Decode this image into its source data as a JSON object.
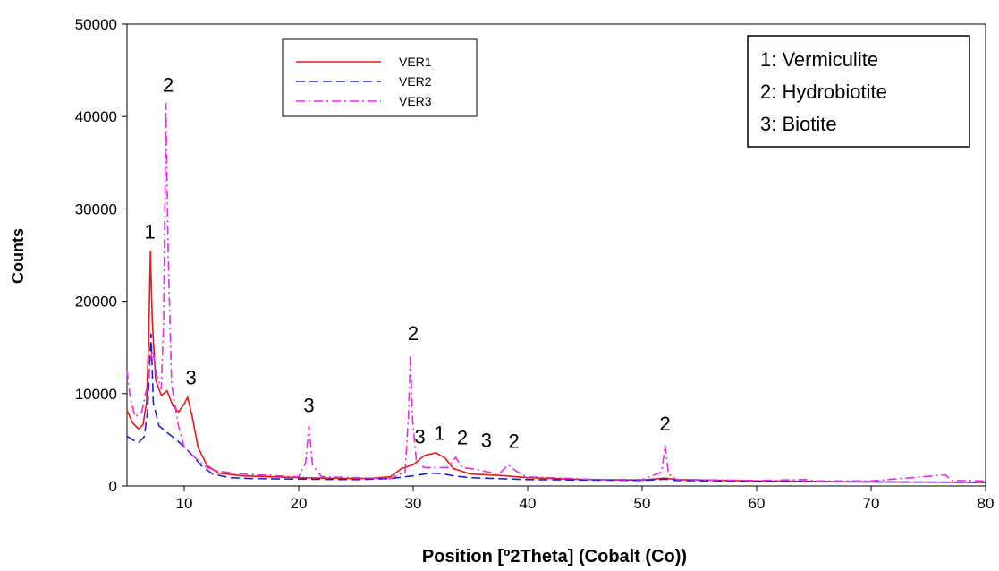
{
  "chart_data": {
    "type": "line",
    "title": "",
    "xlabel": "Position [º2Theta] (Cobalt (Co))",
    "ylabel": "Counts",
    "xlim": [
      5,
      80
    ],
    "ylim": [
      0,
      50000
    ],
    "x_ticks": [
      10,
      20,
      30,
      40,
      50,
      60,
      70,
      80
    ],
    "y_ticks": [
      0,
      10000,
      20000,
      30000,
      40000,
      50000
    ],
    "grid": false,
    "legend_position": "top-center",
    "series": [
      {
        "name": "VER1",
        "color": "#e41a1c",
        "style": "solid",
        "points": [
          [
            5,
            8200
          ],
          [
            5.5,
            6800
          ],
          [
            6,
            6200
          ],
          [
            6.4,
            6600
          ],
          [
            6.7,
            9000
          ],
          [
            6.9,
            16000
          ],
          [
            7.05,
            25500
          ],
          [
            7.2,
            18000
          ],
          [
            7.5,
            11500
          ],
          [
            8,
            9800
          ],
          [
            8.5,
            10300
          ],
          [
            9,
            8700
          ],
          [
            9.5,
            8000
          ],
          [
            10,
            8900
          ],
          [
            10.3,
            9600
          ],
          [
            10.7,
            7500
          ],
          [
            11.2,
            4200
          ],
          [
            12,
            2200
          ],
          [
            13,
            1400
          ],
          [
            15,
            1100
          ],
          [
            20,
            900
          ],
          [
            22,
            850
          ],
          [
            26,
            800
          ],
          [
            28,
            1000
          ],
          [
            29,
            1900
          ],
          [
            30,
            2300
          ],
          [
            31,
            3300
          ],
          [
            32,
            3600
          ],
          [
            32.8,
            3000
          ],
          [
            33.5,
            1900
          ],
          [
            35,
            1300
          ],
          [
            38,
            1100
          ],
          [
            40,
            900
          ],
          [
            45,
            700
          ],
          [
            50,
            650
          ],
          [
            52,
            850
          ],
          [
            53,
            700
          ],
          [
            60,
            550
          ],
          [
            70,
            450
          ],
          [
            80,
            400
          ]
        ]
      },
      {
        "name": "VER2",
        "color": "#1f1fd6",
        "style": "dashed",
        "points": [
          [
            5,
            5400
          ],
          [
            5.5,
            5000
          ],
          [
            6,
            4700
          ],
          [
            6.5,
            5300
          ],
          [
            6.8,
            8000
          ],
          [
            7,
            14000
          ],
          [
            7.1,
            16500
          ],
          [
            7.3,
            9000
          ],
          [
            7.8,
            6500
          ],
          [
            8.5,
            5800
          ],
          [
            9.5,
            4800
          ],
          [
            10.5,
            3600
          ],
          [
            11.5,
            2200
          ],
          [
            12.5,
            1300
          ],
          [
            14,
            900
          ],
          [
            16,
            800
          ],
          [
            20,
            750
          ],
          [
            25,
            700
          ],
          [
            28,
            800
          ],
          [
            30,
            1100
          ],
          [
            31.5,
            1400
          ],
          [
            32.5,
            1350
          ],
          [
            33.5,
            1100
          ],
          [
            35,
            900
          ],
          [
            40,
            700
          ],
          [
            50,
            600
          ],
          [
            52,
            750
          ],
          [
            53,
            600
          ],
          [
            60,
            500
          ],
          [
            70,
            450
          ],
          [
            80,
            400
          ]
        ]
      },
      {
        "name": "VER3",
        "color": "#e22fe0",
        "style": "dashdot",
        "points": [
          [
            5,
            12500
          ],
          [
            5.3,
            9500
          ],
          [
            5.7,
            7500
          ],
          [
            6.3,
            8000
          ],
          [
            6.8,
            11000
          ],
          [
            7.2,
            15000
          ],
          [
            7.6,
            12000
          ],
          [
            8,
            10500
          ],
          [
            8.2,
            18000
          ],
          [
            8.4,
            41500
          ],
          [
            8.6,
            25000
          ],
          [
            8.9,
            11000
          ],
          [
            9.5,
            6500
          ],
          [
            10,
            4200
          ],
          [
            11,
            3000
          ],
          [
            12,
            2000
          ],
          [
            13,
            1600
          ],
          [
            15,
            1300
          ],
          [
            18,
            1100
          ],
          [
            20,
            1000
          ],
          [
            20.6,
            2500
          ],
          [
            20.9,
            6500
          ],
          [
            21.2,
            2300
          ],
          [
            22,
            1000
          ],
          [
            25,
            900
          ],
          [
            28,
            800
          ],
          [
            29.3,
            1500
          ],
          [
            29.6,
            8000
          ],
          [
            29.75,
            14200
          ],
          [
            29.95,
            7000
          ],
          [
            30.3,
            2500
          ],
          [
            31,
            2000
          ],
          [
            33,
            2000
          ],
          [
            33.7,
            3100
          ],
          [
            34.3,
            2000
          ],
          [
            35.5,
            1800
          ],
          [
            36.2,
            1600
          ],
          [
            37.5,
            1300
          ],
          [
            38.3,
            2300
          ],
          [
            38.8,
            1800
          ],
          [
            39.5,
            1200
          ],
          [
            40,
            1000
          ],
          [
            44,
            800
          ],
          [
            46,
            700
          ],
          [
            50,
            700
          ],
          [
            51.7,
            1500
          ],
          [
            52,
            4400
          ],
          [
            52.3,
            1300
          ],
          [
            53,
            700
          ],
          [
            60,
            600
          ],
          [
            64.3,
            700
          ],
          [
            65,
            550
          ],
          [
            70,
            550
          ],
          [
            76.5,
            1200
          ],
          [
            77,
            600
          ],
          [
            80,
            550
          ]
        ]
      }
    ],
    "annotations": [
      {
        "text": "1",
        "x": 7.0,
        "y": 26800
      },
      {
        "text": "2",
        "x": 8.6,
        "y": 42700
      },
      {
        "text": "3",
        "x": 10.6,
        "y": 11000
      },
      {
        "text": "3",
        "x": 20.9,
        "y": 8000
      },
      {
        "text": "2",
        "x": 30.0,
        "y": 15800
      },
      {
        "text": "3",
        "x": 30.6,
        "y": 4600
      },
      {
        "text": "1",
        "x": 32.3,
        "y": 5000
      },
      {
        "text": "2",
        "x": 34.3,
        "y": 4500
      },
      {
        "text": "3",
        "x": 36.4,
        "y": 4200
      },
      {
        "text": "2",
        "x": 38.8,
        "y": 4100
      },
      {
        "text": "2",
        "x": 52.0,
        "y": 6000
      }
    ],
    "phase_legend": [
      "1: Vermiculite",
      "2: Hydrobiotite",
      "3: Biotite"
    ]
  }
}
